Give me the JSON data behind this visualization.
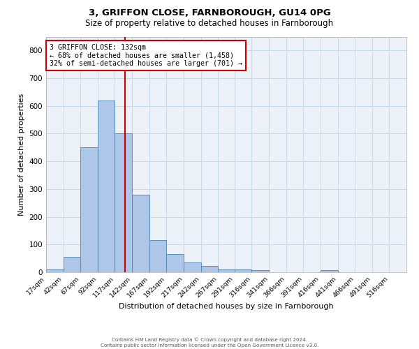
{
  "title1": "3, GRIFFON CLOSE, FARNBOROUGH, GU14 0PG",
  "title2": "Size of property relative to detached houses in Farnborough",
  "xlabel": "Distribution of detached houses by size in Farnborough",
  "ylabel": "Number of detached properties",
  "bin_labels": [
    "17sqm",
    "42sqm",
    "67sqm",
    "92sqm",
    "117sqm",
    "142sqm",
    "167sqm",
    "192sqm",
    "217sqm",
    "242sqm",
    "267sqm",
    "291sqm",
    "316sqm",
    "341sqm",
    "366sqm",
    "391sqm",
    "416sqm",
    "441sqm",
    "466sqm",
    "491sqm",
    "516sqm"
  ],
  "bin_edges": [
    17,
    42,
    67,
    92,
    117,
    142,
    167,
    192,
    217,
    242,
    267,
    291,
    316,
    341,
    366,
    391,
    416,
    441,
    466,
    491,
    516
  ],
  "bar_heights": [
    10,
    55,
    450,
    620,
    500,
    280,
    115,
    65,
    35,
    22,
    10,
    10,
    8,
    0,
    0,
    0,
    7,
    0,
    0,
    0
  ],
  "bar_color": "#aec6e8",
  "bar_edgecolor": "#5b8db8",
  "vline_x": 132,
  "vline_color": "#cc0000",
  "annotation_text": "3 GRIFFON CLOSE: 132sqm\n← 68% of detached houses are smaller (1,458)\n32% of semi-detached houses are larger (701) →",
  "annotation_box_color": "#ffffff",
  "annotation_box_edgecolor": "#cc0000",
  "ylim": [
    0,
    850
  ],
  "yticks": [
    0,
    100,
    200,
    300,
    400,
    500,
    600,
    700,
    800
  ],
  "grid_color": "#c8d8e8",
  "background_color": "#edf2f9",
  "footer1": "Contains HM Land Registry data © Crown copyright and database right 2024.",
  "footer2": "Contains public sector information licensed under the Open Government Licence v3.0."
}
